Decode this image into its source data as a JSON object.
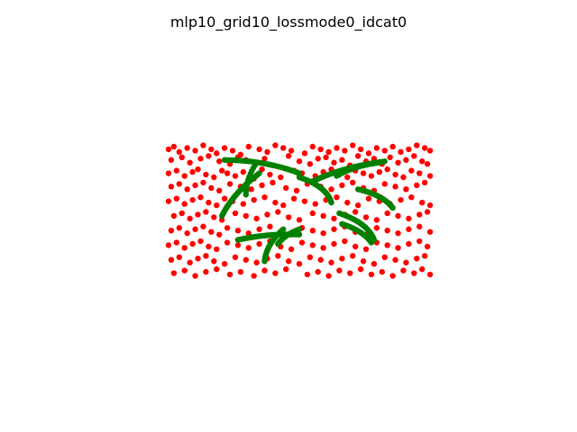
{
  "chart_data": {
    "type": "scatter",
    "title": "mlp10_grid10_lossmode0_idcat0",
    "xlabel": "",
    "ylabel": "",
    "axes_visible": false,
    "grid": false,
    "legend": "none",
    "xlim": [
      0,
      1
    ],
    "ylim": [
      0,
      1
    ],
    "series": [
      {
        "color": "#ff0000",
        "marker": "circle",
        "x": [
          0.01,
          0.03,
          0.05,
          0.08,
          0.11,
          0.14,
          0.17,
          0.19,
          0.22,
          0.25,
          0.28,
          0.31,
          0.35,
          0.38,
          0.41,
          0.44,
          0.47,
          0.52,
          0.55,
          0.58,
          0.61,
          0.64,
          0.67,
          0.7,
          0.73,
          0.76,
          0.79,
          0.82,
          0.85,
          0.88,
          0.91,
          0.94,
          0.97,
          0.99,
          0.02,
          0.06,
          0.09,
          0.13,
          0.16,
          0.2,
          0.24,
          0.27,
          0.3,
          0.34,
          0.37,
          0.4,
          0.46,
          0.5,
          0.54,
          0.57,
          0.6,
          0.63,
          0.66,
          0.69,
          0.72,
          0.75,
          0.78,
          0.81,
          0.84,
          0.87,
          0.9,
          0.93,
          0.96,
          0.98,
          0.01,
          0.04,
          0.07,
          0.1,
          0.12,
          0.15,
          0.18,
          0.21,
          0.23,
          0.26,
          0.29,
          0.33,
          0.36,
          0.39,
          0.43,
          0.48,
          0.51,
          0.56,
          0.59,
          0.62,
          0.65,
          0.68,
          0.71,
          0.74,
          0.77,
          0.8,
          0.83,
          0.86,
          0.89,
          0.92,
          0.95,
          0.99,
          0.02,
          0.05,
          0.08,
          0.11,
          0.14,
          0.17,
          0.2,
          0.24,
          0.28,
          0.32,
          0.36,
          0.4,
          0.45,
          0.49,
          0.53,
          0.58,
          0.62,
          0.66,
          0.7,
          0.74,
          0.78,
          0.82,
          0.86,
          0.9,
          0.94,
          0.97,
          0.01,
          0.04,
          0.07,
          0.1,
          0.13,
          0.16,
          0.19,
          0.22,
          0.25,
          0.29,
          0.33,
          0.37,
          0.41,
          0.44,
          0.48,
          0.52,
          0.56,
          0.6,
          0.64,
          0.68,
          0.72,
          0.76,
          0.8,
          0.84,
          0.88,
          0.92,
          0.96,
          0.99,
          0.03,
          0.06,
          0.09,
          0.12,
          0.15,
          0.18,
          0.21,
          0.26,
          0.3,
          0.34,
          0.38,
          0.42,
          0.46,
          0.5,
          0.55,
          0.59,
          0.63,
          0.67,
          0.71,
          0.75,
          0.79,
          0.83,
          0.87,
          0.91,
          0.95,
          0.98,
          0.02,
          0.05,
          0.08,
          0.11,
          0.14,
          0.17,
          0.2,
          0.23,
          0.27,
          0.31,
          0.35,
          0.39,
          0.43,
          0.47,
          0.51,
          0.55,
          0.59,
          0.63,
          0.67,
          0.71,
          0.75,
          0.79,
          0.83,
          0.87,
          0.91,
          0.95,
          0.99,
          0.01,
          0.04,
          0.07,
          0.1,
          0.13,
          0.16,
          0.19,
          0.23,
          0.27,
          0.31,
          0.35,
          0.39,
          0.43,
          0.47,
          0.51,
          0.55,
          0.59,
          0.63,
          0.67,
          0.71,
          0.75,
          0.79,
          0.83,
          0.87,
          0.91,
          0.95,
          0.98,
          0.02,
          0.05,
          0.09,
          0.12,
          0.15,
          0.18,
          0.22,
          0.26,
          0.3,
          0.34,
          0.38,
          0.42,
          0.46,
          0.5,
          0.54,
          0.58,
          0.62,
          0.66,
          0.7,
          0.74,
          0.78,
          0.82,
          0.86,
          0.9,
          0.94,
          0.97,
          0.03,
          0.07,
          0.11,
          0.15,
          0.19,
          0.24,
          0.28,
          0.33,
          0.37,
          0.41,
          0.45,
          0.53,
          0.57,
          0.61,
          0.65,
          0.69,
          0.73,
          0.77,
          0.81,
          0.85,
          0.89,
          0.93,
          0.96,
          0.99
        ],
        "y": [
          0.96,
          0.98,
          0.94,
          0.97,
          0.95,
          0.99,
          0.96,
          0.93,
          0.97,
          0.95,
          0.92,
          0.98,
          0.96,
          0.94,
          0.99,
          0.97,
          0.95,
          0.93,
          0.98,
          0.96,
          0.94,
          0.97,
          0.95,
          0.99,
          0.96,
          0.93,
          0.97,
          0.95,
          0.98,
          0.94,
          0.96,
          0.99,
          0.97,
          0.95,
          0.88,
          0.9,
          0.86,
          0.89,
          0.91,
          0.87,
          0.85,
          0.9,
          0.88,
          0.86,
          0.89,
          0.84,
          0.91,
          0.87,
          0.85,
          0.89,
          0.9,
          0.86,
          0.88,
          0.84,
          0.91,
          0.87,
          0.89,
          0.85,
          0.9,
          0.86,
          0.88,
          0.91,
          0.87,
          0.85,
          0.78,
          0.8,
          0.76,
          0.79,
          0.81,
          0.77,
          0.75,
          0.8,
          0.78,
          0.76,
          0.79,
          0.74,
          0.81,
          0.77,
          0.75,
          0.8,
          0.78,
          0.76,
          0.79,
          0.81,
          0.77,
          0.75,
          0.8,
          0.78,
          0.76,
          0.79,
          0.81,
          0.77,
          0.75,
          0.8,
          0.78,
          0.76,
          0.68,
          0.7,
          0.66,
          0.69,
          0.71,
          0.67,
          0.65,
          0.7,
          0.68,
          0.66,
          0.69,
          0.71,
          0.67,
          0.65,
          0.7,
          0.68,
          0.66,
          0.69,
          0.71,
          0.67,
          0.65,
          0.7,
          0.68,
          0.66,
          0.69,
          0.71,
          0.57,
          0.59,
          0.55,
          0.58,
          0.6,
          0.56,
          0.54,
          0.59,
          0.57,
          0.55,
          0.58,
          0.6,
          0.56,
          0.54,
          0.59,
          0.57,
          0.55,
          0.58,
          0.6,
          0.56,
          0.54,
          0.59,
          0.57,
          0.55,
          0.58,
          0.6,
          0.56,
          0.54,
          0.46,
          0.48,
          0.44,
          0.47,
          0.49,
          0.45,
          0.43,
          0.48,
          0.46,
          0.44,
          0.47,
          0.49,
          0.45,
          0.43,
          0.48,
          0.46,
          0.44,
          0.47,
          0.49,
          0.45,
          0.43,
          0.48,
          0.46,
          0.44,
          0.47,
          0.49,
          0.35,
          0.37,
          0.33,
          0.36,
          0.38,
          0.34,
          0.32,
          0.37,
          0.35,
          0.33,
          0.36,
          0.38,
          0.34,
          0.32,
          0.37,
          0.35,
          0.33,
          0.36,
          0.38,
          0.34,
          0.32,
          0.37,
          0.35,
          0.33,
          0.36,
          0.38,
          0.34,
          0.24,
          0.26,
          0.22,
          0.25,
          0.27,
          0.23,
          0.21,
          0.26,
          0.24,
          0.22,
          0.25,
          0.27,
          0.23,
          0.21,
          0.26,
          0.24,
          0.22,
          0.25,
          0.27,
          0.23,
          0.21,
          0.26,
          0.24,
          0.22,
          0.25,
          0.27,
          0.23,
          0.13,
          0.15,
          0.11,
          0.14,
          0.16,
          0.12,
          0.1,
          0.15,
          0.13,
          0.11,
          0.14,
          0.16,
          0.12,
          0.1,
          0.15,
          0.13,
          0.11,
          0.14,
          0.16,
          0.12,
          0.1,
          0.15,
          0.13,
          0.11,
          0.14,
          0.16,
          0.03,
          0.05,
          0.01,
          0.04,
          0.06,
          0.02,
          0.04,
          0.01,
          0.05,
          0.03,
          0.06,
          0.02,
          0.04,
          0.01,
          0.05,
          0.03,
          0.06,
          0.02,
          0.04,
          0.01,
          0.05,
          0.03,
          0.06,
          0.02
        ]
      },
      {
        "color": "#008000",
        "marker": "circle",
        "curves": [
          {
            "from": [
              0.22,
              0.88
            ],
            "to": [
              0.5,
              0.78
            ],
            "bend": 0.05,
            "points": 40
          },
          {
            "from": [
              0.21,
              0.46
            ],
            "to": [
              0.35,
              0.78
            ],
            "bend": 0.03,
            "points": 44
          },
          {
            "from": [
              0.3,
              0.62
            ],
            "to": [
              0.34,
              0.86
            ],
            "bend": 0.02,
            "points": 12
          },
          {
            "from": [
              0.27,
              0.28
            ],
            "to": [
              0.5,
              0.32
            ],
            "bend": 0.03,
            "points": 46
          },
          {
            "from": [
              0.37,
              0.12
            ],
            "to": [
              0.44,
              0.36
            ],
            "bend": 0.03,
            "points": 26
          },
          {
            "from": [
              0.42,
              0.25
            ],
            "to": [
              0.5,
              0.36
            ],
            "bend": 0.02,
            "points": 16
          },
          {
            "from": [
              0.5,
              0.75
            ],
            "to": [
              0.62,
              0.56
            ],
            "bend": 0.05,
            "points": 26
          },
          {
            "from": [
              0.55,
              0.72
            ],
            "to": [
              0.82,
              0.87
            ],
            "bend": 0.04,
            "points": 40
          },
          {
            "from": [
              0.64,
              0.76
            ],
            "to": [
              0.8,
              0.86
            ],
            "bend": 0.03,
            "points": 20
          },
          {
            "from": [
              0.72,
              0.66
            ],
            "to": [
              0.85,
              0.52
            ],
            "bend": 0.04,
            "points": 30
          },
          {
            "from": [
              0.65,
              0.48
            ],
            "to": [
              0.78,
              0.28
            ],
            "bend": 0.05,
            "points": 28
          },
          {
            "from": [
              0.66,
              0.4
            ],
            "to": [
              0.77,
              0.26
            ],
            "bend": 0.03,
            "points": 20
          }
        ]
      }
    ]
  }
}
